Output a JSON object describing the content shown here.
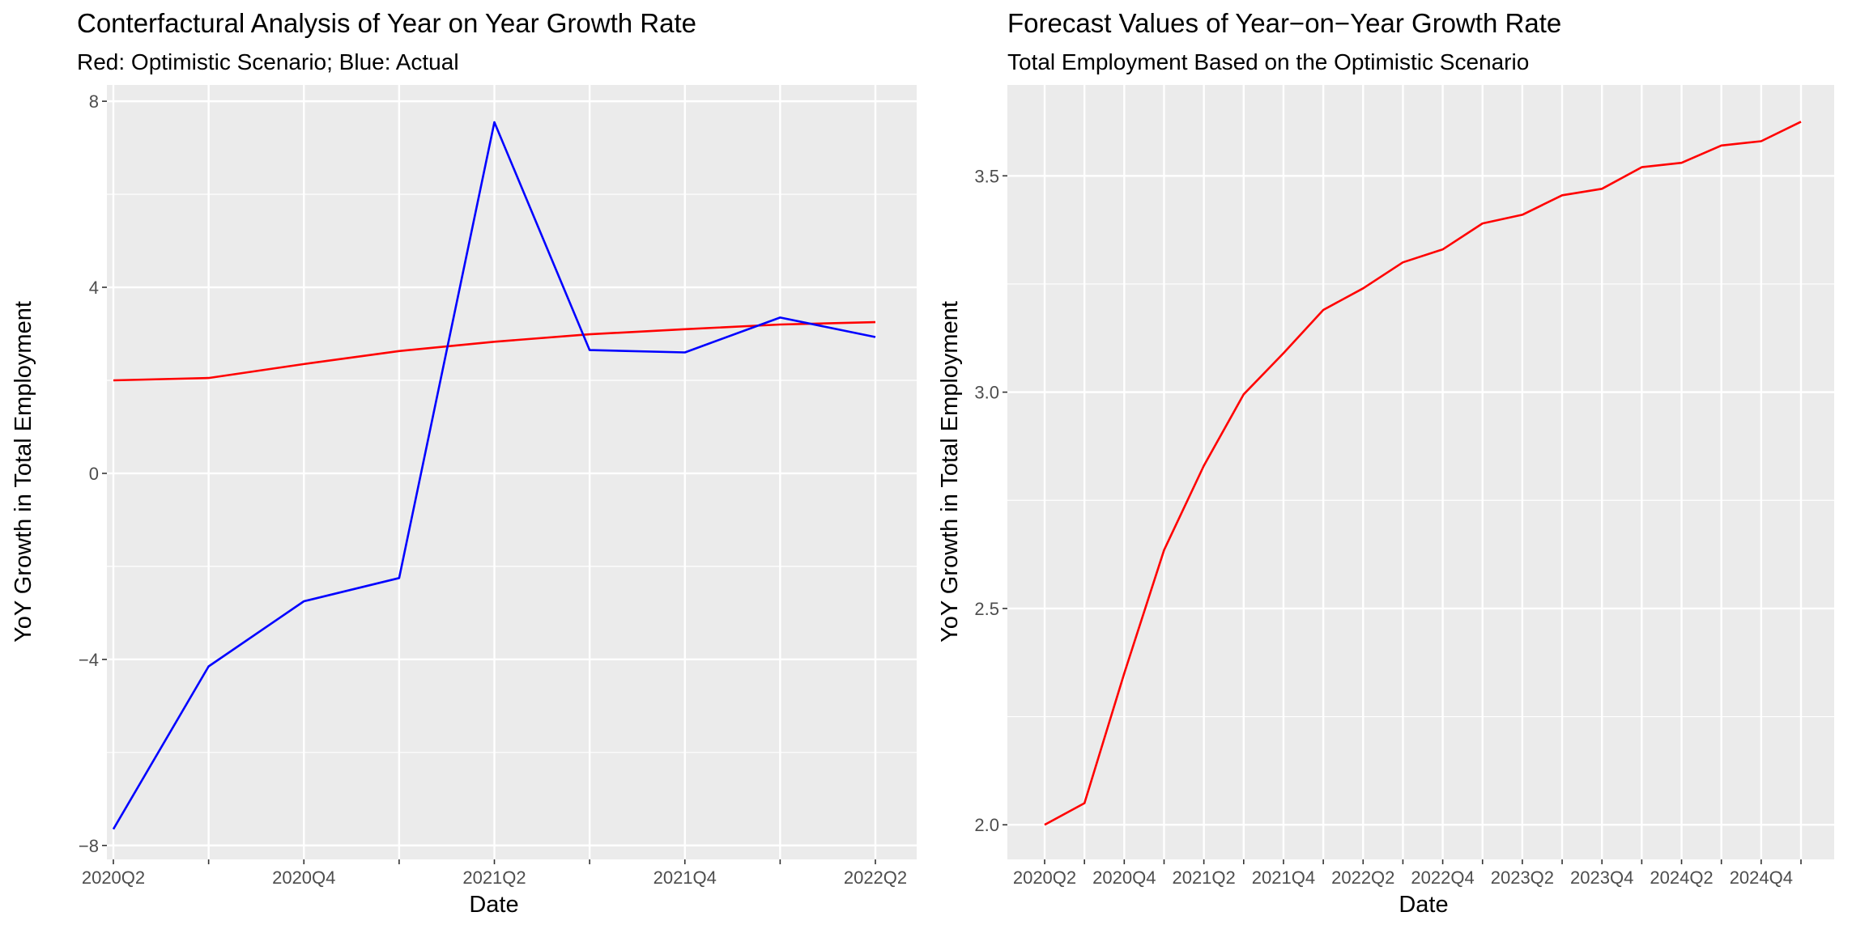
{
  "chart_data": [
    {
      "type": "line",
      "title": "Conterfactural Analysis of Year on Year Growth Rate",
      "subtitle": "Red: Optimistic Scenario; Blue: Actual",
      "xlabel": "Date",
      "ylabel": "YoY Growth in Total Employment",
      "ylim": [
        -8.3,
        8.35
      ],
      "yticks": [
        -8,
        -4,
        0,
        4,
        8
      ],
      "ytick_labels": [
        "−8",
        "−4",
        "0",
        "4",
        "8"
      ],
      "x": [
        "2020Q2",
        "2020Q3",
        "2020Q4",
        "2021Q1",
        "2021Q2",
        "2021Q3",
        "2021Q4",
        "2022Q1",
        "2022Q2"
      ],
      "xtick_labels": [
        "2020Q2",
        "",
        "2020Q4",
        "",
        "2021Q2",
        "",
        "2021Q4",
        "",
        "2022Q2"
      ],
      "grid": true,
      "series": [
        {
          "color": "#ff0000",
          "values": [
            2.0,
            2.05,
            2.35,
            2.63,
            2.83,
            2.99,
            3.1,
            3.2,
            3.25
          ]
        },
        {
          "color": "#0000ff",
          "values": [
            -7.65,
            -4.15,
            -2.75,
            -2.25,
            7.55,
            2.65,
            2.6,
            3.35,
            2.93
          ]
        }
      ]
    },
    {
      "type": "line",
      "title": "Forecast Values of Year−on−Year Growth Rate",
      "subtitle": "Total Employment Based on the Optimistic Scenario",
      "xlabel": "Date",
      "ylabel": "YoY Growth in Total Employment",
      "ylim": [
        1.92,
        3.71
      ],
      "yticks": [
        2.0,
        2.5,
        3.0,
        3.5
      ],
      "ytick_labels": [
        "2.0",
        "2.5",
        "3.0",
        "3.5"
      ],
      "x": [
        "2020Q2",
        "2020Q3",
        "2020Q4",
        "2021Q1",
        "2021Q2",
        "2021Q3",
        "2021Q4",
        "2022Q1",
        "2022Q2",
        "2022Q3",
        "2022Q4",
        "2023Q1",
        "2023Q2",
        "2023Q3",
        "2023Q4",
        "2024Q1",
        "2024Q2",
        "2024Q3",
        "2024Q4",
        "2025Q1"
      ],
      "xtick_labels": [
        "2020Q2",
        "",
        "2020Q4",
        "",
        "2021Q2",
        "",
        "2021Q4",
        "",
        "2022Q2",
        "",
        "2022Q4",
        "",
        "2023Q2",
        "",
        "2023Q4",
        "",
        "2024Q2",
        "",
        "2024Q4",
        ""
      ],
      "grid": true,
      "series": [
        {
          "color": "#ff0000",
          "values": [
            2.0,
            2.05,
            2.35,
            2.635,
            2.83,
            2.995,
            3.09,
            3.19,
            3.24,
            3.3,
            3.33,
            3.39,
            3.41,
            3.455,
            3.47,
            3.52,
            3.53,
            3.57,
            3.58,
            3.625
          ]
        }
      ]
    }
  ]
}
